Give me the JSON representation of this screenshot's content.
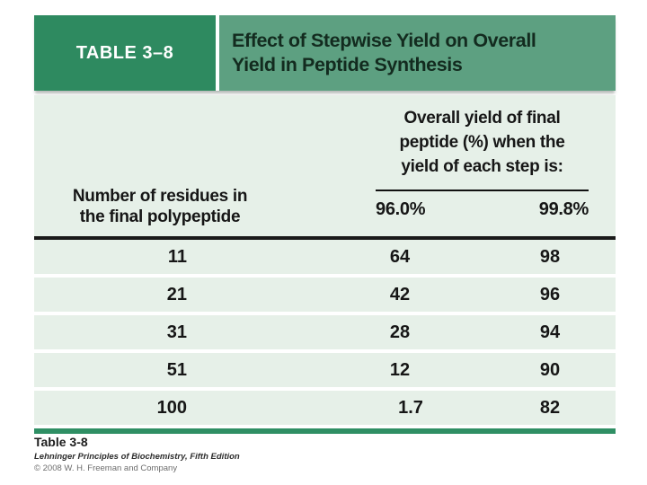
{
  "header": {
    "tab_label": "TABLE 3–8",
    "title_line1": "Effect of Stepwise Yield on Overall",
    "title_line2": "Yield in Peptide Synthesis"
  },
  "table": {
    "row_header_line1": "Number of residues in",
    "row_header_line2": "the final polypeptide",
    "span_header_line1": "Overall yield of final",
    "span_header_line2": "peptide (%) when the",
    "span_header_line3": "yield of each step is:",
    "subcol_left": "96.0%",
    "subcol_right": "99.8%",
    "rows": [
      {
        "residues": "11",
        "yield_96": "64",
        "yield_998": "98"
      },
      {
        "residues": "21",
        "yield_96": "42",
        "yield_998": "96"
      },
      {
        "residues": "31",
        "yield_96": "28",
        "yield_998": "94"
      },
      {
        "residues": "51",
        "yield_96": "12",
        "yield_998": "90"
      },
      {
        "residues": "100",
        "yield_96": "1.7",
        "yield_998": "82"
      }
    ]
  },
  "footer": {
    "ref": "Table 3-8",
    "source": "Lehninger Principles of Biochemistry, Fifth Edition",
    "copyright": "© 2008 W. H. Freeman and Company"
  },
  "colors": {
    "tab_green": "#2e8a60",
    "title_green": "#5da081",
    "row_mint": "#e6f0e8",
    "bottom_rule_green": "#2f8f64",
    "head_rule_black": "#1a1a1a",
    "text_dark": "#161616"
  },
  "chart_data": {
    "type": "table",
    "title": "Effect of Stepwise Yield on Overall Yield in Peptide Synthesis",
    "columns": [
      "Number of residues in the final polypeptide",
      "Overall yield (%) at 96.0% step yield",
      "Overall yield (%) at 99.8% step yield"
    ],
    "rows": [
      [
        11,
        64,
        98
      ],
      [
        21,
        42,
        96
      ],
      [
        31,
        28,
        94
      ],
      [
        51,
        12,
        90
      ],
      [
        100,
        1.7,
        82
      ]
    ]
  }
}
